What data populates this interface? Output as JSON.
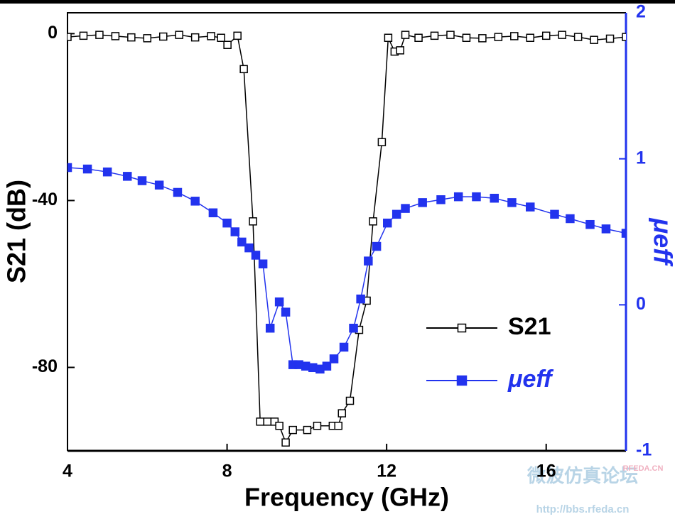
{
  "chart_data": {
    "type": "line",
    "xlabel": "Frequency (GHz)",
    "ylabel": "S21 (dB)",
    "y2label": "μeff",
    "xlim": [
      4,
      18
    ],
    "xticks": [
      4,
      8,
      12,
      16
    ],
    "ylim": [
      -100,
      5
    ],
    "yticks": [
      -80,
      -40,
      0
    ],
    "y2lim": [
      -1,
      2
    ],
    "y2ticks": [
      -1,
      0,
      1,
      2
    ],
    "legend": "lower right",
    "series": [
      {
        "name": "S21",
        "color": "#000000",
        "marker": "open-square",
        "x": [
          4.0,
          4.4,
          4.8,
          5.2,
          5.6,
          6.0,
          6.4,
          6.8,
          7.2,
          7.6,
          7.85,
          8.01,
          8.26,
          8.42,
          8.65,
          8.83,
          9.01,
          9.19,
          9.31,
          9.47,
          9.65,
          10.01,
          10.26,
          10.65,
          10.79,
          10.88,
          11.08,
          11.31,
          11.5,
          11.66,
          11.88,
          12.04,
          12.2,
          12.34,
          12.47,
          12.8,
          13.2,
          13.6,
          14.0,
          14.4,
          14.8,
          15.2,
          15.6,
          16.0,
          16.4,
          16.8,
          17.2,
          17.6,
          18.0
        ],
        "values": [
          -0.8,
          -0.5,
          -0.3,
          -0.6,
          -0.9,
          -1.1,
          -0.7,
          -0.3,
          -0.9,
          -0.6,
          -1.0,
          -2.7,
          -0.5,
          -8.5,
          -45,
          -93,
          -93,
          -93,
          -94,
          -98,
          -95,
          -95,
          -94,
          -94,
          -94,
          -91,
          -88,
          -71,
          -64,
          -45,
          -26,
          -1,
          -4.3,
          -4,
          -0.3,
          -1,
          -0.5,
          -0.3,
          -1,
          -1.1,
          -0.8,
          -0.6,
          -1,
          -0.5,
          -0.3,
          -0.8,
          -1.5,
          -1.2,
          -0.8
        ]
      },
      {
        "name": "μeff",
        "color": "#2233ee",
        "marker": "filled-square",
        "axis": "y2",
        "x": [
          4.0,
          4.5,
          5.0,
          5.5,
          5.87,
          6.3,
          6.76,
          7.2,
          7.65,
          8.0,
          8.2,
          8.37,
          8.55,
          8.72,
          8.9,
          9.08,
          9.31,
          9.47,
          9.65,
          9.8,
          9.97,
          10.15,
          10.33,
          10.5,
          10.68,
          10.93,
          11.17,
          11.35,
          11.54,
          11.75,
          12.02,
          12.25,
          12.47,
          12.9,
          13.36,
          13.8,
          14.25,
          14.7,
          15.14,
          15.6,
          16.21,
          16.6,
          17.1,
          17.5,
          18.0
        ],
        "values": [
          0.94,
          0.93,
          0.91,
          0.88,
          0.85,
          0.82,
          0.77,
          0.71,
          0.63,
          0.56,
          0.5,
          0.43,
          0.39,
          0.34,
          0.28,
          -0.16,
          0.02,
          -0.05,
          -0.41,
          -0.41,
          -0.42,
          -0.43,
          -0.44,
          -0.42,
          -0.37,
          -0.29,
          -0.16,
          0.04,
          0.3,
          0.4,
          0.56,
          0.62,
          0.66,
          0.7,
          0.72,
          0.74,
          0.74,
          0.73,
          0.7,
          0.67,
          0.62,
          0.59,
          0.55,
          0.52,
          0.49
        ]
      }
    ],
    "watermark": [
      "微波仿真论坛",
      "http://bbs.rfeda.cn",
      "RFEDA.CN"
    ]
  }
}
